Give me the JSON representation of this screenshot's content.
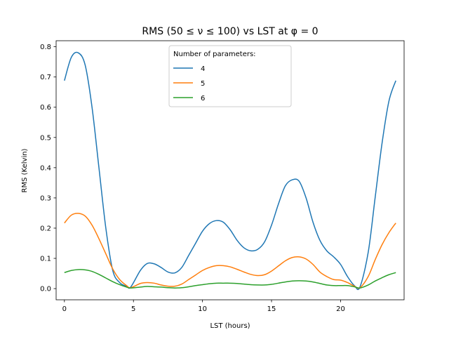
{
  "chart_data": {
    "type": "line",
    "title": "RMS (50 ≤ ν ≤ 100) vs LST at φ = 0",
    "xlabel": "LST (hours)",
    "ylabel": "RMS (Kelvin)",
    "xlim": [
      -0.6,
      24.6
    ],
    "ylim": [
      -0.037,
      0.82
    ],
    "xticks": [
      0,
      5,
      10,
      15,
      20
    ],
    "xtick_labels": [
      "0",
      "5",
      "10",
      "15",
      "20"
    ],
    "yticks": [
      0.0,
      0.1,
      0.2,
      0.3,
      0.4,
      0.5,
      0.6,
      0.7,
      0.8
    ],
    "ytick_labels": [
      "0.0",
      "0.1",
      "0.2",
      "0.3",
      "0.4",
      "0.5",
      "0.6",
      "0.7",
      "0.8"
    ],
    "grid": false,
    "legend": {
      "title": "Number of parameters:",
      "placement": "upper-center"
    },
    "x": [
      0,
      0.5,
      1,
      1.5,
      2,
      2.5,
      3,
      3.5,
      4,
      4.5,
      4.8,
      5.5,
      6,
      6.5,
      7,
      7.5,
      8,
      8.5,
      9,
      9.5,
      10,
      10.5,
      11,
      11.5,
      12,
      12.5,
      13,
      13.5,
      14,
      14.5,
      15,
      15.5,
      16,
      16.5,
      17,
      17.5,
      18,
      18.5,
      19,
      19.5,
      20,
      20.5,
      21,
      21.4,
      22,
      22.5,
      23,
      23.5,
      24
    ],
    "series": [
      {
        "name": "4",
        "color": "#1f77b4",
        "values": [
          0.688,
          0.765,
          0.78,
          0.74,
          0.6,
          0.4,
          0.2,
          0.06,
          0.02,
          0.008,
          0.005,
          0.06,
          0.083,
          0.082,
          0.07,
          0.055,
          0.052,
          0.07,
          0.11,
          0.15,
          0.19,
          0.215,
          0.225,
          0.22,
          0.195,
          0.16,
          0.135,
          0.125,
          0.13,
          0.155,
          0.21,
          0.28,
          0.34,
          0.36,
          0.355,
          0.3,
          0.22,
          0.16,
          0.125,
          0.105,
          0.08,
          0.04,
          0.01,
          0.005,
          0.12,
          0.3,
          0.48,
          0.62,
          0.688
        ]
      },
      {
        "name": "5",
        "color": "#ff7f0e",
        "values": [
          0.217,
          0.243,
          0.249,
          0.24,
          0.21,
          0.165,
          0.115,
          0.065,
          0.03,
          0.01,
          0.003,
          0.017,
          0.02,
          0.018,
          0.012,
          0.008,
          0.008,
          0.015,
          0.03,
          0.045,
          0.06,
          0.07,
          0.076,
          0.076,
          0.072,
          0.064,
          0.055,
          0.047,
          0.043,
          0.046,
          0.058,
          0.075,
          0.092,
          0.103,
          0.105,
          0.098,
          0.08,
          0.055,
          0.04,
          0.03,
          0.028,
          0.02,
          0.008,
          0.003,
          0.04,
          0.095,
          0.145,
          0.185,
          0.217
        ]
      },
      {
        "name": "6",
        "color": "#2ca02c",
        "values": [
          0.053,
          0.06,
          0.063,
          0.062,
          0.057,
          0.047,
          0.035,
          0.023,
          0.013,
          0.005,
          0.002,
          0.005,
          0.007,
          0.006,
          0.005,
          0.003,
          0.002,
          0.003,
          0.006,
          0.01,
          0.013,
          0.016,
          0.018,
          0.018,
          0.018,
          0.017,
          0.015,
          0.013,
          0.012,
          0.012,
          0.014,
          0.018,
          0.022,
          0.025,
          0.026,
          0.025,
          0.022,
          0.017,
          0.012,
          0.01,
          0.01,
          0.01,
          0.006,
          0.002,
          0.012,
          0.025,
          0.036,
          0.046,
          0.053
        ]
      }
    ]
  }
}
